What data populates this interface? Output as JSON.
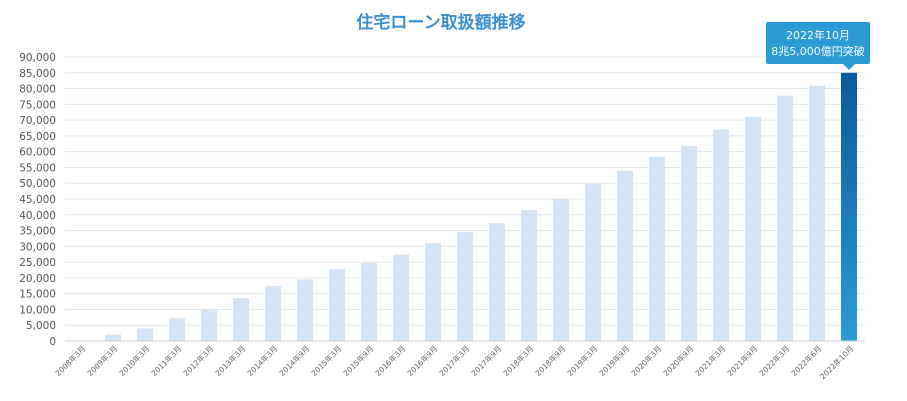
{
  "chart_data": {
    "type": "bar",
    "title": "住宅ローン取扱額推移",
    "xlabel": "",
    "ylabel": "",
    "ylim": [
      0,
      90000
    ],
    "yticks": [
      0,
      5000,
      10000,
      15000,
      20000,
      25000,
      30000,
      35000,
      40000,
      45000,
      50000,
      55000,
      60000,
      65000,
      70000,
      75000,
      80000,
      85000,
      90000
    ],
    "grid": true,
    "legend": "none",
    "categories": [
      "2008年3月",
      "2009年3月",
      "2010年3月",
      "2011年3月",
      "2012年3月",
      "2013年3月",
      "2014年3月",
      "2014年9月",
      "2015年3月",
      "2015年9月",
      "2016年3月",
      "2016年9月",
      "2017年3月",
      "2017年9月",
      "2018年3月",
      "2018年9月",
      "2019年3月",
      "2019年9月",
      "2020年3月",
      "2020年9月",
      "2021年3月",
      "2021年9月",
      "2022年3月",
      "2022年6月",
      "2022年10月"
    ],
    "values": [
      0,
      2000,
      4000,
      7200,
      9900,
      13600,
      17400,
      19500,
      22700,
      24800,
      27400,
      31000,
      34600,
      37400,
      41500,
      45000,
      49700,
      54000,
      58400,
      61800,
      67000,
      71000,
      77800,
      80900,
      85000
    ],
    "colors": {
      "bar": "#d5e4f2",
      "highlight_top": "#0a5a9c",
      "highlight_bottom": "#2b9bd6",
      "callout_bg": "#2b9bd6",
      "title": "#3a8fcf"
    },
    "highlight_index": 24,
    "callout": {
      "line1": "2022年10月",
      "line2": "8兆5,000億円突破"
    }
  }
}
